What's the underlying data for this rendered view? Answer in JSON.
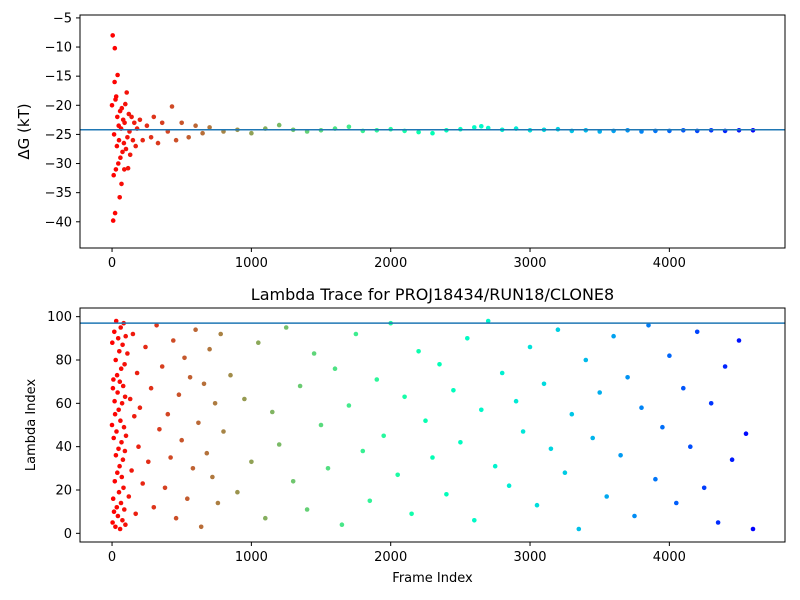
{
  "chart_data": [
    {
      "type": "scatter",
      "name_key": "delta-g",
      "title": "",
      "xlabel": "",
      "ylabel": "ΔG (kT)",
      "xlim": [
        -230,
        4830
      ],
      "ylim": [
        -44.5,
        -4.5
      ],
      "xticks": [
        0,
        1000,
        2000,
        3000,
        4000
      ],
      "yticks": [
        -40,
        -35,
        -30,
        -25,
        -20,
        -15,
        -10,
        -5
      ],
      "reference_line": {
        "y": -24.2,
        "color": "#1f77b4"
      },
      "colormap": "rainbow_reversed",
      "x_max_frame": 4600,
      "series": [
        {
          "points": [
            [
              0,
              -20
            ],
            [
              5,
              -8
            ],
            [
              8,
              -39.8
            ],
            [
              12,
              -32
            ],
            [
              15,
              -25
            ],
            [
              18,
              -16
            ],
            [
              20,
              -10.2
            ],
            [
              22,
              -38.5
            ],
            [
              25,
              -19
            ],
            [
              28,
              -31
            ],
            [
              30,
              -18.5
            ],
            [
              35,
              -27
            ],
            [
              38,
              -22
            ],
            [
              40,
              -14.8
            ],
            [
              45,
              -30
            ],
            [
              48,
              -23.5
            ],
            [
              50,
              -26
            ],
            [
              55,
              -35.8
            ],
            [
              58,
              -21
            ],
            [
              60,
              -29
            ],
            [
              65,
              -24
            ],
            [
              68,
              -33.5
            ],
            [
              70,
              -20.5
            ],
            [
              75,
              -28
            ],
            [
              80,
              -22.5
            ],
            [
              85,
              -26.5
            ],
            [
              88,
              -31
            ],
            [
              90,
              -23
            ],
            [
              95,
              -19.8
            ],
            [
              100,
              -27.5
            ],
            [
              105,
              -17.8
            ],
            [
              110,
              -25.5
            ],
            [
              115,
              -30.8
            ],
            [
              120,
              -21.5
            ],
            [
              125,
              -24.5
            ],
            [
              130,
              -28.5
            ],
            [
              140,
              -22
            ],
            [
              150,
              -26
            ],
            [
              160,
              -23
            ],
            [
              170,
              -27
            ],
            [
              180,
              -24
            ],
            [
              200,
              -22.5
            ],
            [
              220,
              -26
            ],
            [
              250,
              -23.5
            ],
            [
              280,
              -25.5
            ],
            [
              300,
              -22
            ],
            [
              330,
              -26.5
            ],
            [
              360,
              -23
            ],
            [
              400,
              -24.5
            ],
            [
              430,
              -20.2
            ],
            [
              460,
              -26
            ],
            [
              500,
              -23
            ],
            [
              550,
              -25.5
            ],
            [
              600,
              -23.5
            ],
            [
              650,
              -24.8
            ],
            [
              700,
              -23.8
            ],
            [
              800,
              -24.5
            ],
            [
              900,
              -24.2
            ],
            [
              1000,
              -24.8
            ],
            [
              1100,
              -24
            ],
            [
              1200,
              -23.4
            ],
            [
              1300,
              -24.2
            ],
            [
              1400,
              -24.5
            ],
            [
              1500,
              -24.3
            ],
            [
              1600,
              -24
            ],
            [
              1700,
              -23.7
            ],
            [
              1800,
              -24.4
            ],
            [
              1900,
              -24.3
            ],
            [
              2000,
              -24.1
            ],
            [
              2100,
              -24.4
            ],
            [
              2200,
              -24.6
            ],
            [
              2300,
              -24.8
            ],
            [
              2400,
              -24.3
            ],
            [
              2500,
              -24.1
            ],
            [
              2600,
              -23.8
            ],
            [
              2650,
              -23.6
            ],
            [
              2700,
              -23.9
            ],
            [
              2800,
              -24.2
            ],
            [
              2900,
              -24
            ],
            [
              3000,
              -24.3
            ],
            [
              3100,
              -24.2
            ],
            [
              3200,
              -24.1
            ],
            [
              3300,
              -24.4
            ],
            [
              3400,
              -24.3
            ],
            [
              3500,
              -24.5
            ],
            [
              3600,
              -24.4
            ],
            [
              3700,
              -24.3
            ],
            [
              3800,
              -24.5
            ],
            [
              3900,
              -24.4
            ],
            [
              4000,
              -24.4
            ],
            [
              4100,
              -24.3
            ],
            [
              4200,
              -24.4
            ],
            [
              4300,
              -24.3
            ],
            [
              4400,
              -24.4
            ],
            [
              4500,
              -24.3
            ],
            [
              4600,
              -24.3
            ]
          ]
        }
      ]
    },
    {
      "type": "scatter",
      "name_key": "lambda-trace",
      "title": "Lambda Trace for PROJ18434/RUN18/CLONE8",
      "xlabel": "Frame Index",
      "ylabel": "Lambda Index",
      "xlim": [
        -230,
        4830
      ],
      "ylim": [
        -4,
        104
      ],
      "xticks": [
        0,
        1000,
        2000,
        3000,
        4000
      ],
      "yticks": [
        0,
        20,
        40,
        60,
        80,
        100
      ],
      "reference_line": {
        "y": 97,
        "color": "#1f77b4"
      },
      "colormap": "rainbow_reversed",
      "x_max_frame": 4600,
      "lambda_range": [
        1,
        99
      ],
      "sampled_frame_step": 2,
      "series": [
        {
          "points": [
            [
              0,
              50
            ],
            [
              2,
              88
            ],
            [
              4,
              5
            ],
            [
              6,
              67
            ],
            [
              8,
              16
            ],
            [
              10,
              71
            ],
            [
              12,
              44
            ],
            [
              14,
              10
            ],
            [
              16,
              93
            ],
            [
              18,
              61
            ],
            [
              20,
              24
            ],
            [
              22,
              55
            ],
            [
              24,
              3
            ],
            [
              26,
              80
            ],
            [
              28,
              36
            ],
            [
              30,
              98
            ],
            [
              32,
              47
            ],
            [
              34,
              12
            ],
            [
              36,
              73
            ],
            [
              38,
              28
            ],
            [
              40,
              65
            ],
            [
              42,
              8
            ],
            [
              44,
              90
            ],
            [
              46,
              39
            ],
            [
              48,
              57
            ],
            [
              50,
              19
            ],
            [
              52,
              84
            ],
            [
              54,
              31
            ],
            [
              56,
              70
            ],
            [
              58,
              2
            ],
            [
              60,
              52
            ],
            [
              62,
              95
            ],
            [
              64,
              14
            ],
            [
              66,
              76
            ],
            [
              68,
              42
            ],
            [
              70,
              26
            ],
            [
              72,
              60
            ],
            [
              74,
              6
            ],
            [
              76,
              87
            ],
            [
              78,
              34
            ],
            [
              80,
              68
            ],
            [
              82,
              21
            ],
            [
              84,
              97
            ],
            [
              86,
              49
            ],
            [
              88,
              11
            ],
            [
              90,
              78
            ],
            [
              92,
              38
            ],
            [
              94,
              63
            ],
            [
              96,
              4
            ],
            [
              98,
              91
            ],
            [
              100,
              45
            ],
            [
              110,
              83
            ],
            [
              120,
              17
            ],
            [
              130,
              62
            ],
            [
              140,
              29
            ],
            [
              150,
              92
            ],
            [
              160,
              54
            ],
            [
              170,
              9
            ],
            [
              180,
              74
            ],
            [
              190,
              40
            ],
            [
              200,
              58
            ],
            [
              220,
              23
            ],
            [
              240,
              86
            ],
            [
              260,
              33
            ],
            [
              280,
              67
            ],
            [
              300,
              12
            ],
            [
              320,
              96
            ],
            [
              340,
              48
            ],
            [
              360,
              77
            ],
            [
              380,
              21
            ],
            [
              400,
              55
            ],
            [
              420,
              35
            ],
            [
              440,
              89
            ],
            [
              460,
              7
            ],
            [
              480,
              64
            ],
            [
              500,
              43
            ],
            [
              520,
              81
            ],
            [
              540,
              16
            ],
            [
              560,
              72
            ],
            [
              580,
              30
            ],
            [
              600,
              94
            ],
            [
              620,
              51
            ],
            [
              640,
              3
            ],
            [
              660,
              69
            ],
            [
              680,
              37
            ],
            [
              700,
              85
            ],
            [
              720,
              26
            ],
            [
              740,
              60
            ],
            [
              760,
              14
            ],
            [
              780,
              92
            ],
            [
              800,
              47
            ],
            [
              850,
              73
            ],
            [
              900,
              19
            ],
            [
              950,
              62
            ],
            [
              1000,
              33
            ],
            [
              1050,
              88
            ],
            [
              1100,
              7
            ],
            [
              1150,
              56
            ],
            [
              1200,
              41
            ],
            [
              1250,
              95
            ],
            [
              1300,
              24
            ],
            [
              1350,
              68
            ],
            [
              1400,
              11
            ],
            [
              1450,
              83
            ],
            [
              1500,
              50
            ],
            [
              1550,
              30
            ],
            [
              1600,
              76
            ],
            [
              1650,
              4
            ],
            [
              1700,
              59
            ],
            [
              1750,
              92
            ],
            [
              1800,
              38
            ],
            [
              1850,
              15
            ],
            [
              1900,
              71
            ],
            [
              1950,
              45
            ],
            [
              2000,
              97
            ],
            [
              2050,
              27
            ],
            [
              2100,
              63
            ],
            [
              2150,
              9
            ],
            [
              2200,
              84
            ],
            [
              2250,
              52
            ],
            [
              2300,
              35
            ],
            [
              2350,
              78
            ],
            [
              2400,
              18
            ],
            [
              2450,
              66
            ],
            [
              2500,
              42
            ],
            [
              2550,
              90
            ],
            [
              2600,
              6
            ],
            [
              2650,
              57
            ],
            [
              2700,
              98
            ],
            [
              2750,
              31
            ],
            [
              2800,
              74
            ],
            [
              2850,
              22
            ],
            [
              2900,
              61
            ],
            [
              2950,
              47
            ],
            [
              3000,
              86
            ],
            [
              3050,
              13
            ],
            [
              3100,
              69
            ],
            [
              3150,
              39
            ],
            [
              3200,
              94
            ],
            [
              3250,
              28
            ],
            [
              3300,
              55
            ],
            [
              3350,
              2
            ],
            [
              3400,
              80
            ],
            [
              3450,
              44
            ],
            [
              3500,
              65
            ],
            [
              3550,
              17
            ],
            [
              3600,
              91
            ],
            [
              3650,
              36
            ],
            [
              3700,
              72
            ],
            [
              3750,
              8
            ],
            [
              3800,
              58
            ],
            [
              3850,
              96
            ],
            [
              3900,
              25
            ],
            [
              3950,
              49
            ],
            [
              4000,
              82
            ],
            [
              4050,
              14
            ],
            [
              4100,
              67
            ],
            [
              4150,
              40
            ],
            [
              4200,
              93
            ],
            [
              4250,
              21
            ],
            [
              4300,
              60
            ],
            [
              4350,
              5
            ],
            [
              4400,
              77
            ],
            [
              4450,
              34
            ],
            [
              4500,
              89
            ],
            [
              4550,
              46
            ],
            [
              4600,
              2
            ]
          ]
        }
      ]
    }
  ]
}
